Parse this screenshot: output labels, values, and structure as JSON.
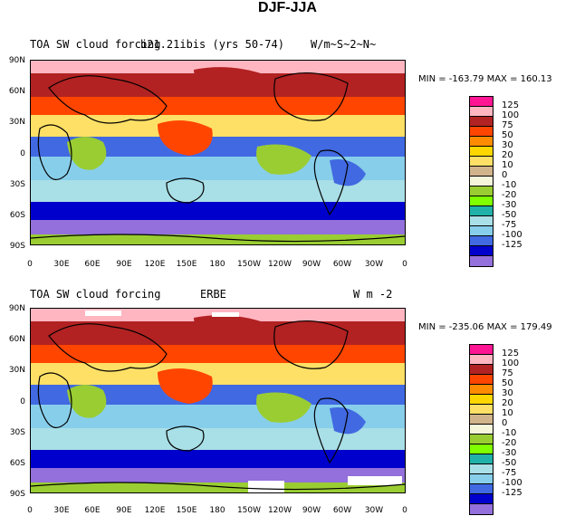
{
  "title": "DJF-JJA",
  "colors": [
    "#ff1493",
    "#ffb6c1",
    "#b22222",
    "#ff4500",
    "#ff8c00",
    "#ffd700",
    "#ffe066",
    "#d2b48c",
    "#f5f5dc",
    "#9acd32",
    "#7fff00",
    "#20b2aa",
    "#a9dfe6",
    "#87ceeb",
    "#4169e1",
    "#0000cd",
    "#9370db"
  ],
  "map_colors": {
    "ocean_trop": "#87ceeb",
    "equator": "#4169e1",
    "subtrop_n": "#ffe066",
    "subtrop_s": "#9acd32",
    "midlat_n": "#ff4500",
    "high_n": "#b22222",
    "polar_n": "#ffb6c1",
    "midlat_s": "#a9dfe6",
    "storm_s": "#0000cd",
    "south_band": "#9370db",
    "antarctic": "#9acd32",
    "coast": "#000000"
  },
  "panels": [
    {
      "left_title": "TOA SW cloud forcing",
      "center_title": "b21.21ibis (yrs 50-74)",
      "right_title": "W/m~S~2~N~",
      "minmax": "MIN = -163.79 MAX = 160.13",
      "lat_labels": [
        "90N",
        "60N",
        "30N",
        "0",
        "30S",
        "60S",
        "90S"
      ],
      "lon_labels": [
        "0",
        "30E",
        "60E",
        "90E",
        "120E",
        "150E",
        "180",
        "150W",
        "120W",
        "90W",
        "60W",
        "30W",
        "0"
      ],
      "colorbar_labels": [
        "125",
        "100",
        "75",
        "50",
        "30",
        "20",
        "10",
        "0",
        "-10",
        "-20",
        "-30",
        "-50",
        "-75",
        "-100",
        "-125"
      ]
    },
    {
      "left_title": "TOA SW cloud forcing",
      "center_title": "ERBE",
      "right_title": "W m -2",
      "minmax": "MIN = -235.06 MAX = 179.49",
      "lat_labels": [
        "90N",
        "60N",
        "30N",
        "0",
        "30S",
        "60S",
        "90S"
      ],
      "lon_labels": [
        "0",
        "30E",
        "60E",
        "90E",
        "120E",
        "150E",
        "180",
        "150W",
        "120W",
        "90W",
        "60W",
        "30W",
        "0"
      ],
      "colorbar_labels": [
        "125",
        "100",
        "75",
        "50",
        "30",
        "20",
        "10",
        "0",
        "-10",
        "-20",
        "-30",
        "-50",
        "-75",
        "-100",
        "-125"
      ]
    }
  ]
}
